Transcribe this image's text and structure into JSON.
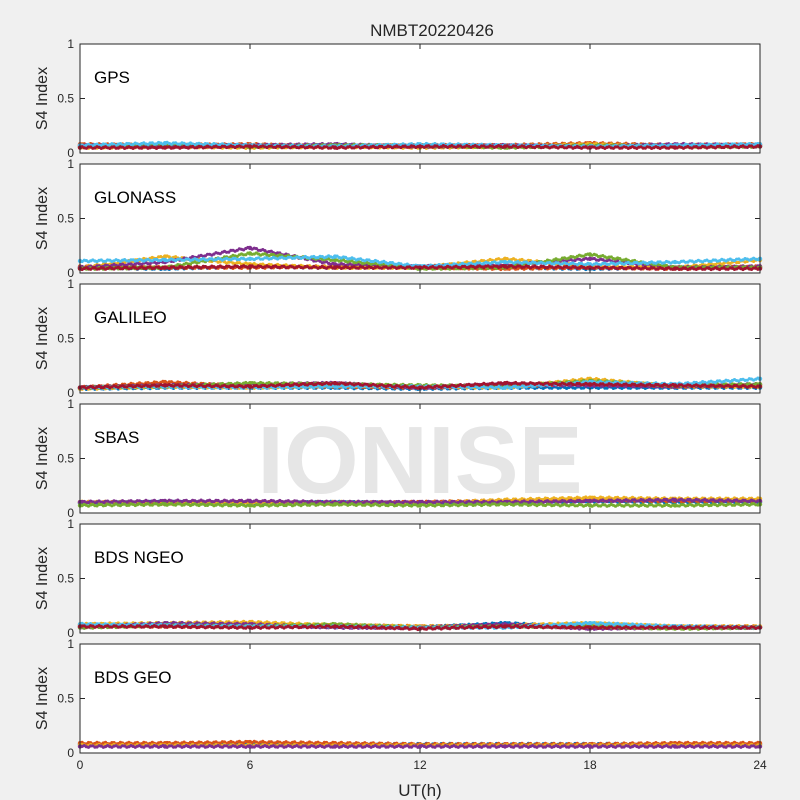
{
  "figure": {
    "title": "NMBT20220426",
    "xlabel": "UT(h)",
    "watermark": "IONISE"
  },
  "chart_data": [
    {
      "type": "scatter",
      "panel_label": "GPS",
      "ylabel": "S4 Index",
      "xlim": [
        0,
        24
      ],
      "ylim": [
        0,
        1
      ],
      "xticks": [
        0,
        6,
        12,
        18,
        24
      ],
      "yticks": [
        0,
        0.5,
        1
      ],
      "xticklabels_visible": false,
      "grid": false,
      "series_colors": [
        "#0072BD",
        "#D95319",
        "#EDB120",
        "#7E2F8E",
        "#77AC30",
        "#4DBEEE",
        "#A2142F"
      ],
      "series": [
        {
          "x": [
            0,
            3,
            6,
            9,
            12,
            15,
            18,
            21,
            24
          ],
          "y": [
            0.06,
            0.07,
            0.06,
            0.07,
            0.06,
            0.06,
            0.07,
            0.06,
            0.06
          ]
        },
        {
          "x": [
            0,
            3,
            6,
            9,
            12,
            15,
            18,
            21,
            24
          ],
          "y": [
            0.08,
            0.07,
            0.08,
            0.06,
            0.07,
            0.07,
            0.09,
            0.07,
            0.08
          ]
        },
        {
          "x": [
            0,
            3,
            6,
            9,
            12,
            15,
            18,
            21,
            24
          ],
          "y": [
            0.05,
            0.06,
            0.05,
            0.06,
            0.05,
            0.06,
            0.08,
            0.06,
            0.07
          ]
        },
        {
          "x": [
            0,
            3,
            6,
            9,
            12,
            15,
            18,
            21,
            24
          ],
          "y": [
            0.07,
            0.06,
            0.07,
            0.08,
            0.06,
            0.07,
            0.06,
            0.08,
            0.07
          ]
        },
        {
          "x": [
            0,
            3,
            6,
            9,
            12,
            15,
            18,
            21,
            24
          ],
          "y": [
            0.06,
            0.08,
            0.06,
            0.07,
            0.07,
            0.05,
            0.07,
            0.06,
            0.06
          ]
        },
        {
          "x": [
            0,
            3,
            6,
            9,
            12,
            15,
            18,
            21,
            24
          ],
          "y": [
            0.07,
            0.09,
            0.07,
            0.06,
            0.08,
            0.07,
            0.06,
            0.07,
            0.08
          ]
        },
        {
          "x": [
            0,
            3,
            6,
            9,
            12,
            15,
            18,
            21,
            24
          ],
          "y": [
            0.05,
            0.05,
            0.06,
            0.05,
            0.06,
            0.06,
            0.05,
            0.05,
            0.06
          ]
        }
      ]
    },
    {
      "type": "scatter",
      "panel_label": "GLONASS",
      "ylabel": "S4 Index",
      "xlim": [
        0,
        24
      ],
      "ylim": [
        0,
        1
      ],
      "xticks": [
        0,
        6,
        12,
        18,
        24
      ],
      "yticks": [
        0,
        0.5,
        1
      ],
      "xticklabels_visible": false,
      "grid": false,
      "series_colors": [
        "#0072BD",
        "#D95319",
        "#EDB120",
        "#7E2F8E",
        "#77AC30",
        "#4DBEEE",
        "#A2142F"
      ],
      "series": [
        {
          "x": [
            0,
            3,
            6,
            9,
            12,
            15,
            18,
            21,
            24
          ],
          "y": [
            0.05,
            0.04,
            0.06,
            0.05,
            0.06,
            0.05,
            0.04,
            0.05,
            0.05
          ]
        },
        {
          "x": [
            0,
            3,
            6,
            9,
            12,
            15,
            18,
            21,
            24
          ],
          "y": [
            0.06,
            0.05,
            0.05,
            0.06,
            0.05,
            0.04,
            0.05,
            0.04,
            0.06
          ]
        },
        {
          "x": [
            0,
            3,
            6,
            9,
            12,
            15,
            18,
            21,
            24
          ],
          "y": [
            0.05,
            0.15,
            0.08,
            0.05,
            0.05,
            0.13,
            0.06,
            0.05,
            0.12
          ]
        },
        {
          "x": [
            0,
            3,
            6,
            9,
            12,
            15,
            18,
            21,
            24
          ],
          "y": [
            0.05,
            0.1,
            0.23,
            0.08,
            0.06,
            0.07,
            0.13,
            0.05,
            0.06
          ]
        },
        {
          "x": [
            0,
            3,
            6,
            9,
            12,
            15,
            18,
            21,
            24
          ],
          "y": [
            0.04,
            0.05,
            0.18,
            0.12,
            0.04,
            0.05,
            0.17,
            0.05,
            0.05
          ]
        },
        {
          "x": [
            0,
            3,
            6,
            9,
            12,
            15,
            18,
            21,
            24
          ],
          "y": [
            0.11,
            0.12,
            0.13,
            0.15,
            0.06,
            0.1,
            0.08,
            0.1,
            0.13
          ]
        },
        {
          "x": [
            0,
            3,
            6,
            9,
            12,
            15,
            18,
            21,
            24
          ],
          "y": [
            0.04,
            0.05,
            0.06,
            0.05,
            0.05,
            0.06,
            0.05,
            0.04,
            0.04
          ]
        }
      ]
    },
    {
      "type": "scatter",
      "panel_label": "GALILEO",
      "ylabel": "S4 Index",
      "xlim": [
        0,
        24
      ],
      "ylim": [
        0,
        1
      ],
      "xticks": [
        0,
        6,
        12,
        18,
        24
      ],
      "yticks": [
        0,
        0.5,
        1
      ],
      "xticklabels_visible": false,
      "grid": false,
      "series_colors": [
        "#0072BD",
        "#D95319",
        "#EDB120",
        "#7E2F8E",
        "#77AC30",
        "#4DBEEE",
        "#A2142F"
      ],
      "series": [
        {
          "x": [
            0,
            3,
            6,
            9,
            12,
            15,
            18,
            21,
            24
          ],
          "y": [
            0.04,
            0.05,
            0.05,
            0.05,
            0.04,
            0.05,
            0.05,
            0.05,
            0.05
          ]
        },
        {
          "x": [
            0,
            3,
            6,
            9,
            12,
            15,
            18,
            21,
            24
          ],
          "y": [
            0.05,
            0.1,
            0.06,
            0.06,
            0.05,
            0.06,
            0.09,
            0.06,
            0.07
          ]
        },
        {
          "x": [
            0,
            3,
            6,
            9,
            12,
            15,
            18,
            21,
            24
          ],
          "y": [
            0.04,
            0.06,
            0.05,
            0.07,
            0.06,
            0.05,
            0.13,
            0.06,
            0.06
          ]
        },
        {
          "x": [
            0,
            3,
            6,
            9,
            12,
            15,
            18,
            21,
            24
          ],
          "y": [
            0.05,
            0.07,
            0.08,
            0.09,
            0.05,
            0.08,
            0.07,
            0.06,
            0.08
          ]
        },
        {
          "x": [
            0,
            3,
            6,
            9,
            12,
            15,
            18,
            21,
            24
          ],
          "y": [
            0.05,
            0.06,
            0.09,
            0.08,
            0.07,
            0.06,
            0.11,
            0.07,
            0.08
          ]
        },
        {
          "x": [
            0,
            3,
            6,
            9,
            12,
            15,
            18,
            21,
            24
          ],
          "y": [
            0.05,
            0.06,
            0.05,
            0.06,
            0.06,
            0.05,
            0.1,
            0.08,
            0.13
          ]
        },
        {
          "x": [
            0,
            3,
            6,
            9,
            12,
            15,
            18,
            21,
            24
          ],
          "y": [
            0.05,
            0.07,
            0.06,
            0.09,
            0.05,
            0.09,
            0.08,
            0.07,
            0.06
          ]
        }
      ]
    },
    {
      "type": "scatter",
      "panel_label": "SBAS",
      "ylabel": "S4 Index",
      "xlim": [
        0,
        24
      ],
      "ylim": [
        0,
        1
      ],
      "xticks": [
        0,
        6,
        12,
        18,
        24
      ],
      "yticks": [
        0,
        0.5,
        1
      ],
      "xticklabels_visible": false,
      "grid": false,
      "series_colors": [
        "#0072BD",
        "#D95319",
        "#EDB120",
        "#7E2F8E",
        "#77AC30",
        "#4DBEEE",
        "#A2142F"
      ],
      "series": [
        {
          "x": [
            0,
            3,
            6,
            9,
            12,
            15,
            18,
            21,
            24
          ],
          "y": [
            0.09,
            0.1,
            0.09,
            0.1,
            0.09,
            0.1,
            0.11,
            0.1,
            0.1
          ]
        },
        {
          "x": [
            0,
            3,
            6,
            9,
            12,
            15,
            18,
            21,
            24
          ],
          "y": [
            0.1,
            0.09,
            0.1,
            0.09,
            0.1,
            0.11,
            0.12,
            0.11,
            0.11
          ]
        },
        {
          "x": [
            0,
            3,
            6,
            9,
            12,
            15,
            18,
            21,
            24
          ],
          "y": [
            0.1,
            0.1,
            0.09,
            0.1,
            0.09,
            0.12,
            0.14,
            0.13,
            0.13
          ]
        },
        {
          "x": [
            0,
            3,
            6,
            9,
            12,
            15,
            18,
            21,
            24
          ],
          "y": [
            0.1,
            0.11,
            0.11,
            0.1,
            0.1,
            0.1,
            0.11,
            0.12,
            0.11
          ]
        },
        {
          "x": [
            0,
            3,
            6,
            9,
            12,
            15,
            18,
            21,
            24
          ],
          "y": [
            0.07,
            0.08,
            0.07,
            0.08,
            0.07,
            0.08,
            0.07,
            0.07,
            0.08
          ]
        }
      ]
    },
    {
      "type": "scatter",
      "panel_label": "BDS NGEO",
      "ylabel": "S4 Index",
      "xlim": [
        0,
        24
      ],
      "ylim": [
        0,
        1
      ],
      "xticks": [
        0,
        6,
        12,
        18,
        24
      ],
      "yticks": [
        0,
        0.5,
        1
      ],
      "xticklabels_visible": false,
      "grid": false,
      "series_colors": [
        "#0072BD",
        "#D95319",
        "#EDB120",
        "#7E2F8E",
        "#77AC30",
        "#4DBEEE",
        "#A2142F"
      ],
      "series": [
        {
          "x": [
            0,
            3,
            6,
            9,
            12,
            15,
            18,
            21,
            24
          ],
          "y": [
            0.06,
            0.08,
            0.07,
            0.06,
            0.05,
            0.09,
            0.05,
            0.06,
            0.05
          ]
        },
        {
          "x": [
            0,
            3,
            6,
            9,
            12,
            15,
            18,
            21,
            24
          ],
          "y": [
            0.07,
            0.06,
            0.06,
            0.07,
            0.06,
            0.06,
            0.07,
            0.05,
            0.06
          ]
        },
        {
          "x": [
            0,
            3,
            6,
            9,
            12,
            15,
            18,
            21,
            24
          ],
          "y": [
            0.08,
            0.09,
            0.1,
            0.07,
            0.06,
            0.07,
            0.09,
            0.06,
            0.06
          ]
        },
        {
          "x": [
            0,
            3,
            6,
            9,
            12,
            15,
            18,
            21,
            24
          ],
          "y": [
            0.05,
            0.09,
            0.08,
            0.05,
            0.05,
            0.08,
            0.04,
            0.05,
            0.05
          ]
        },
        {
          "x": [
            0,
            3,
            6,
            9,
            12,
            15,
            18,
            21,
            24
          ],
          "y": [
            0.05,
            0.07,
            0.06,
            0.08,
            0.05,
            0.06,
            0.06,
            0.04,
            0.05
          ]
        },
        {
          "x": [
            0,
            3,
            6,
            9,
            12,
            15,
            18,
            21,
            24
          ],
          "y": [
            0.08,
            0.07,
            0.06,
            0.06,
            0.05,
            0.05,
            0.09,
            0.06,
            0.05
          ]
        },
        {
          "x": [
            0,
            3,
            6,
            9,
            12,
            15,
            18,
            21,
            24
          ],
          "y": [
            0.06,
            0.06,
            0.05,
            0.06,
            0.04,
            0.06,
            0.05,
            0.05,
            0.05
          ]
        }
      ]
    },
    {
      "type": "scatter",
      "panel_label": "BDS GEO",
      "ylabel": "S4 Index",
      "xlim": [
        0,
        24
      ],
      "ylim": [
        0,
        1
      ],
      "xticks": [
        0,
        6,
        12,
        18,
        24
      ],
      "yticks": [
        0,
        0.5,
        1
      ],
      "xticklabels_visible": true,
      "grid": false,
      "series_colors": [
        "#0072BD",
        "#D95319",
        "#EDB120",
        "#7E2F8E",
        "#77AC30",
        "#4DBEEE",
        "#A2142F"
      ],
      "series": [
        {
          "x": [
            0,
            3,
            6,
            9,
            12,
            15,
            18,
            21,
            24
          ],
          "y": [
            0.08,
            0.08,
            0.08,
            0.08,
            0.08,
            0.08,
            0.08,
            0.08,
            0.08
          ]
        },
        {
          "x": [
            0,
            3,
            6,
            9,
            12,
            15,
            18,
            21,
            24
          ],
          "y": [
            0.09,
            0.09,
            0.1,
            0.09,
            0.08,
            0.08,
            0.08,
            0.09,
            0.09
          ]
        },
        {
          "x": [
            0,
            3,
            6,
            9,
            12,
            15,
            18,
            21,
            24
          ],
          "y": [
            0.07,
            0.07,
            0.07,
            0.07,
            0.07,
            0.07,
            0.07,
            0.07,
            0.07
          ]
        },
        {
          "x": [
            0,
            3,
            6,
            9,
            12,
            15,
            18,
            21,
            24
          ],
          "y": [
            0.06,
            0.06,
            0.06,
            0.06,
            0.06,
            0.06,
            0.06,
            0.06,
            0.06
          ]
        }
      ]
    }
  ]
}
